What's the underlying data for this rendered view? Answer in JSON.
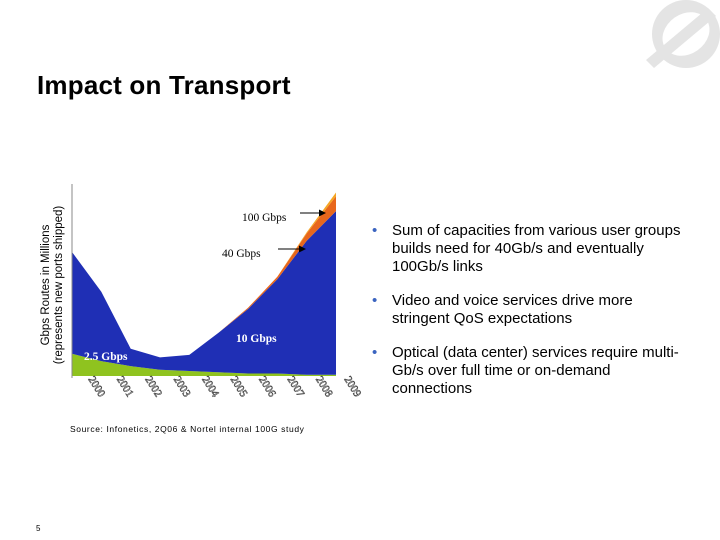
{
  "slide": {
    "title": "Impact on Transport",
    "page_number": "5",
    "logo_icon": "nortel-globe-icon"
  },
  "chart_data": {
    "type": "area",
    "stacked": true,
    "ylabel_line1": "Gbps Routes in Millions",
    "ylabel_line2": "(represents new ports shipped)",
    "categories": [
      "2000",
      "2001",
      "2002",
      "2003",
      "2004",
      "2005",
      "2006",
      "2007",
      "2008",
      "2009"
    ],
    "series": [
      {
        "name": "2.5 Gbps",
        "color": "#8fc31f",
        "values": [
          18,
          12,
          8,
          5,
          4,
          3,
          2,
          2,
          1,
          1
        ]
      },
      {
        "name": "10 Gbps",
        "color": "#1f2fb5",
        "values": [
          82,
          56,
          14,
          10,
          13,
          32,
          52,
          76,
          108,
          132
        ]
      },
      {
        "name": "40 Gbps",
        "color": "#e8671c",
        "values": [
          0,
          0,
          0,
          0,
          0,
          0,
          1,
          2,
          6,
          12
        ]
      },
      {
        "name": "100 Gbps",
        "color": "#f5a623",
        "values": [
          0,
          0,
          0,
          0,
          0,
          0,
          0,
          0,
          1,
          3
        ]
      }
    ],
    "ylim": [
      0,
      150
    ],
    "annotations": [
      {
        "text": "100 Gbps",
        "arrow": true
      },
      {
        "text": "40 Gbps",
        "arrow": true
      },
      {
        "text": "10 Gbps",
        "arrow": false
      },
      {
        "text": "2.5 Gbps",
        "arrow": false
      }
    ],
    "source": "Source: Infonetics, 2Q06 & Nortel internal 100G study"
  },
  "bullets": [
    "Sum of capacities from various user groups builds need for 40Gb/s and eventually 100Gb/s links",
    "Video and voice services drive more stringent QoS expectations",
    "Optical (data center) services require multi-Gb/s over full time or on-demand connections"
  ],
  "bullet_glyph": "•"
}
